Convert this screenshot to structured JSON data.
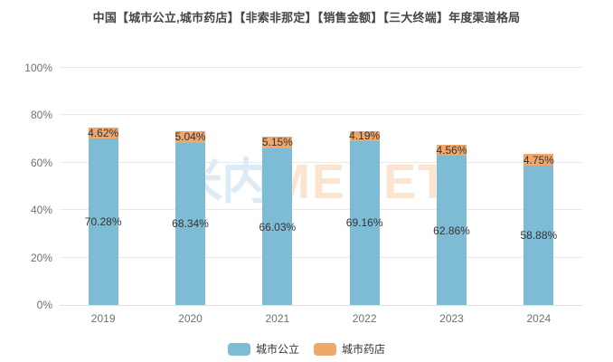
{
  "title": "中国【城市公立,城市药店】【非索非那定】【销售金额】【三大终端】年度渠道格局",
  "watermark": {
    "cn": "米内",
    "en": "MENET"
  },
  "colors": {
    "series_blue": "#7ebcd6",
    "series_orange": "#f0a86a",
    "gridline": "#e9e9e9",
    "axis_line": "#dfdfdf",
    "axis_text": "#6e7079",
    "data_label": "#333333",
    "title_text": "#464646"
  },
  "chart_data": {
    "type": "bar",
    "stacked": true,
    "title": "中国【城市公立,城市药店】【非索非那定】【销售金额】【三大终端】年度渠道格局",
    "categories": [
      "2019",
      "2020",
      "2021",
      "2022",
      "2023",
      "2024"
    ],
    "series": [
      {
        "name": "城市公立",
        "color": "#7ebcd6",
        "values": [
          70.28,
          68.34,
          66.03,
          69.16,
          62.86,
          58.88
        ]
      },
      {
        "name": "城市药店",
        "color": "#f0a86a",
        "values": [
          4.62,
          5.04,
          5.15,
          4.19,
          4.56,
          4.75
        ]
      }
    ],
    "label_format": "percent_2dp",
    "xlabel": "",
    "ylabel": "",
    "ylim": [
      0,
      100
    ],
    "yticks": [
      "0%",
      "20%",
      "40%",
      "60%",
      "80%",
      "100%"
    ],
    "grid": true,
    "legend_position": "bottom"
  }
}
